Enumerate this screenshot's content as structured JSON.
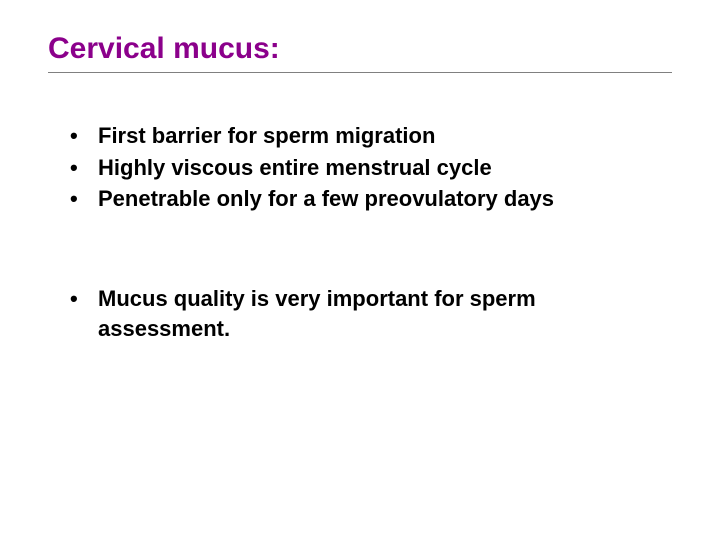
{
  "slide": {
    "title": "Cervical mucus:",
    "title_color": "#8b008b",
    "title_fontsize": 30,
    "body_color": "#000000",
    "body_fontsize": 22,
    "background_color": "#ffffff",
    "divider_color": "#808080",
    "bullets_group1": [
      "First barrier for sperm migration",
      "Highly viscous entire menstrual cycle",
      "Penetrable only for a few preovulatory days"
    ],
    "bullets_group2": [
      "Mucus quality is very important for sperm assessment."
    ]
  }
}
